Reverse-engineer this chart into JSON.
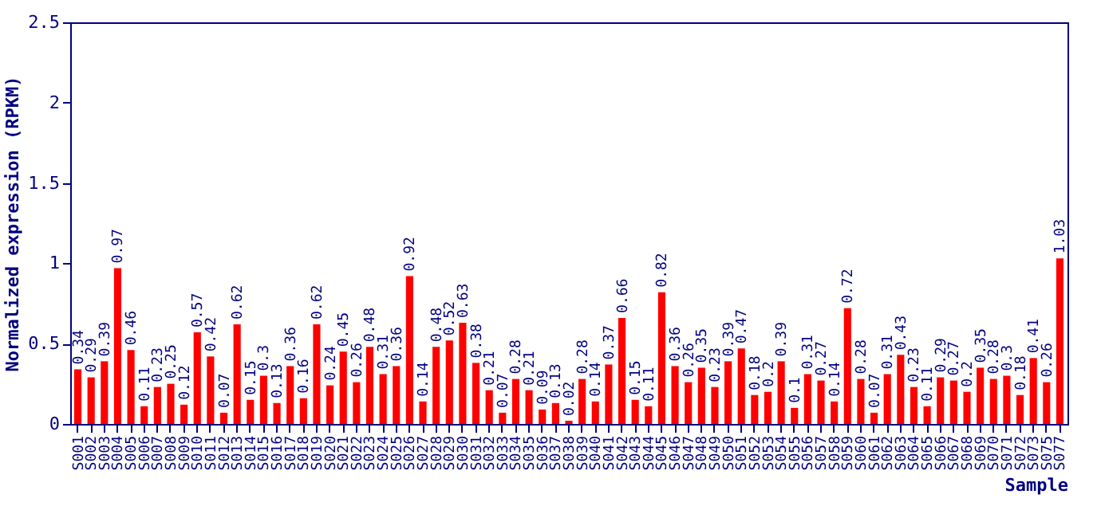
{
  "chart_data": {
    "type": "bar",
    "xlabel": "Sample",
    "ylabel": "Normalized expression (RPKM)",
    "categories": [
      "S001",
      "S002",
      "S003",
      "S004",
      "S005",
      "S006",
      "S007",
      "S008",
      "S009",
      "S010",
      "S011",
      "S012",
      "S013",
      "S014",
      "S015",
      "S016",
      "S017",
      "S018",
      "S019",
      "S020",
      "S021",
      "S022",
      "S023",
      "S024",
      "S025",
      "S026",
      "S027",
      "S028",
      "S029",
      "S030",
      "S031",
      "S032",
      "S033",
      "S034",
      "S035",
      "S036",
      "S037",
      "S038",
      "S039",
      "S040",
      "S041",
      "S042",
      "S043",
      "S044",
      "S045",
      "S046",
      "S047",
      "S048",
      "S049",
      "S050",
      "S051",
      "S052",
      "S053",
      "S054",
      "S055",
      "S056",
      "S057",
      "S058",
      "S059",
      "S060",
      "S061",
      "S062",
      "S063",
      "S064",
      "S065",
      "S066",
      "S067",
      "S068",
      "S069",
      "S070",
      "S071",
      "S072",
      "S073",
      "S075",
      "S077"
    ],
    "values": [
      0.34,
      0.29,
      0.39,
      0.97,
      0.46,
      0.11,
      0.23,
      0.25,
      0.12,
      0.57,
      0.42,
      0.07,
      0.62,
      0.15,
      0.3,
      0.13,
      0.36,
      0.16,
      0.62,
      0.24,
      0.45,
      0.26,
      0.48,
      0.31,
      0.36,
      0.92,
      0.14,
      0.48,
      0.52,
      0.63,
      0.38,
      0.21,
      0.07,
      0.28,
      0.21,
      0.09,
      0.13,
      0.02,
      0.28,
      0.14,
      0.37,
      0.66,
      0.15,
      0.11,
      0.82,
      0.36,
      0.26,
      0.35,
      0.23,
      0.39,
      0.47,
      0.18,
      0.2,
      0.39,
      0.1,
      0.31,
      0.27,
      0.14,
      0.72,
      0.28,
      0.07,
      0.31,
      0.43,
      0.23,
      0.11,
      0.29,
      0.27,
      0.2,
      0.35,
      0.28,
      0.3,
      0.18,
      0.41,
      0.26,
      1.03
    ],
    "color": "#ff0000",
    "ylim": [
      0,
      2.5
    ],
    "yticks": [
      0,
      0.5,
      1,
      1.5,
      2,
      2.5
    ],
    "grid": false,
    "data_labels": true
  }
}
